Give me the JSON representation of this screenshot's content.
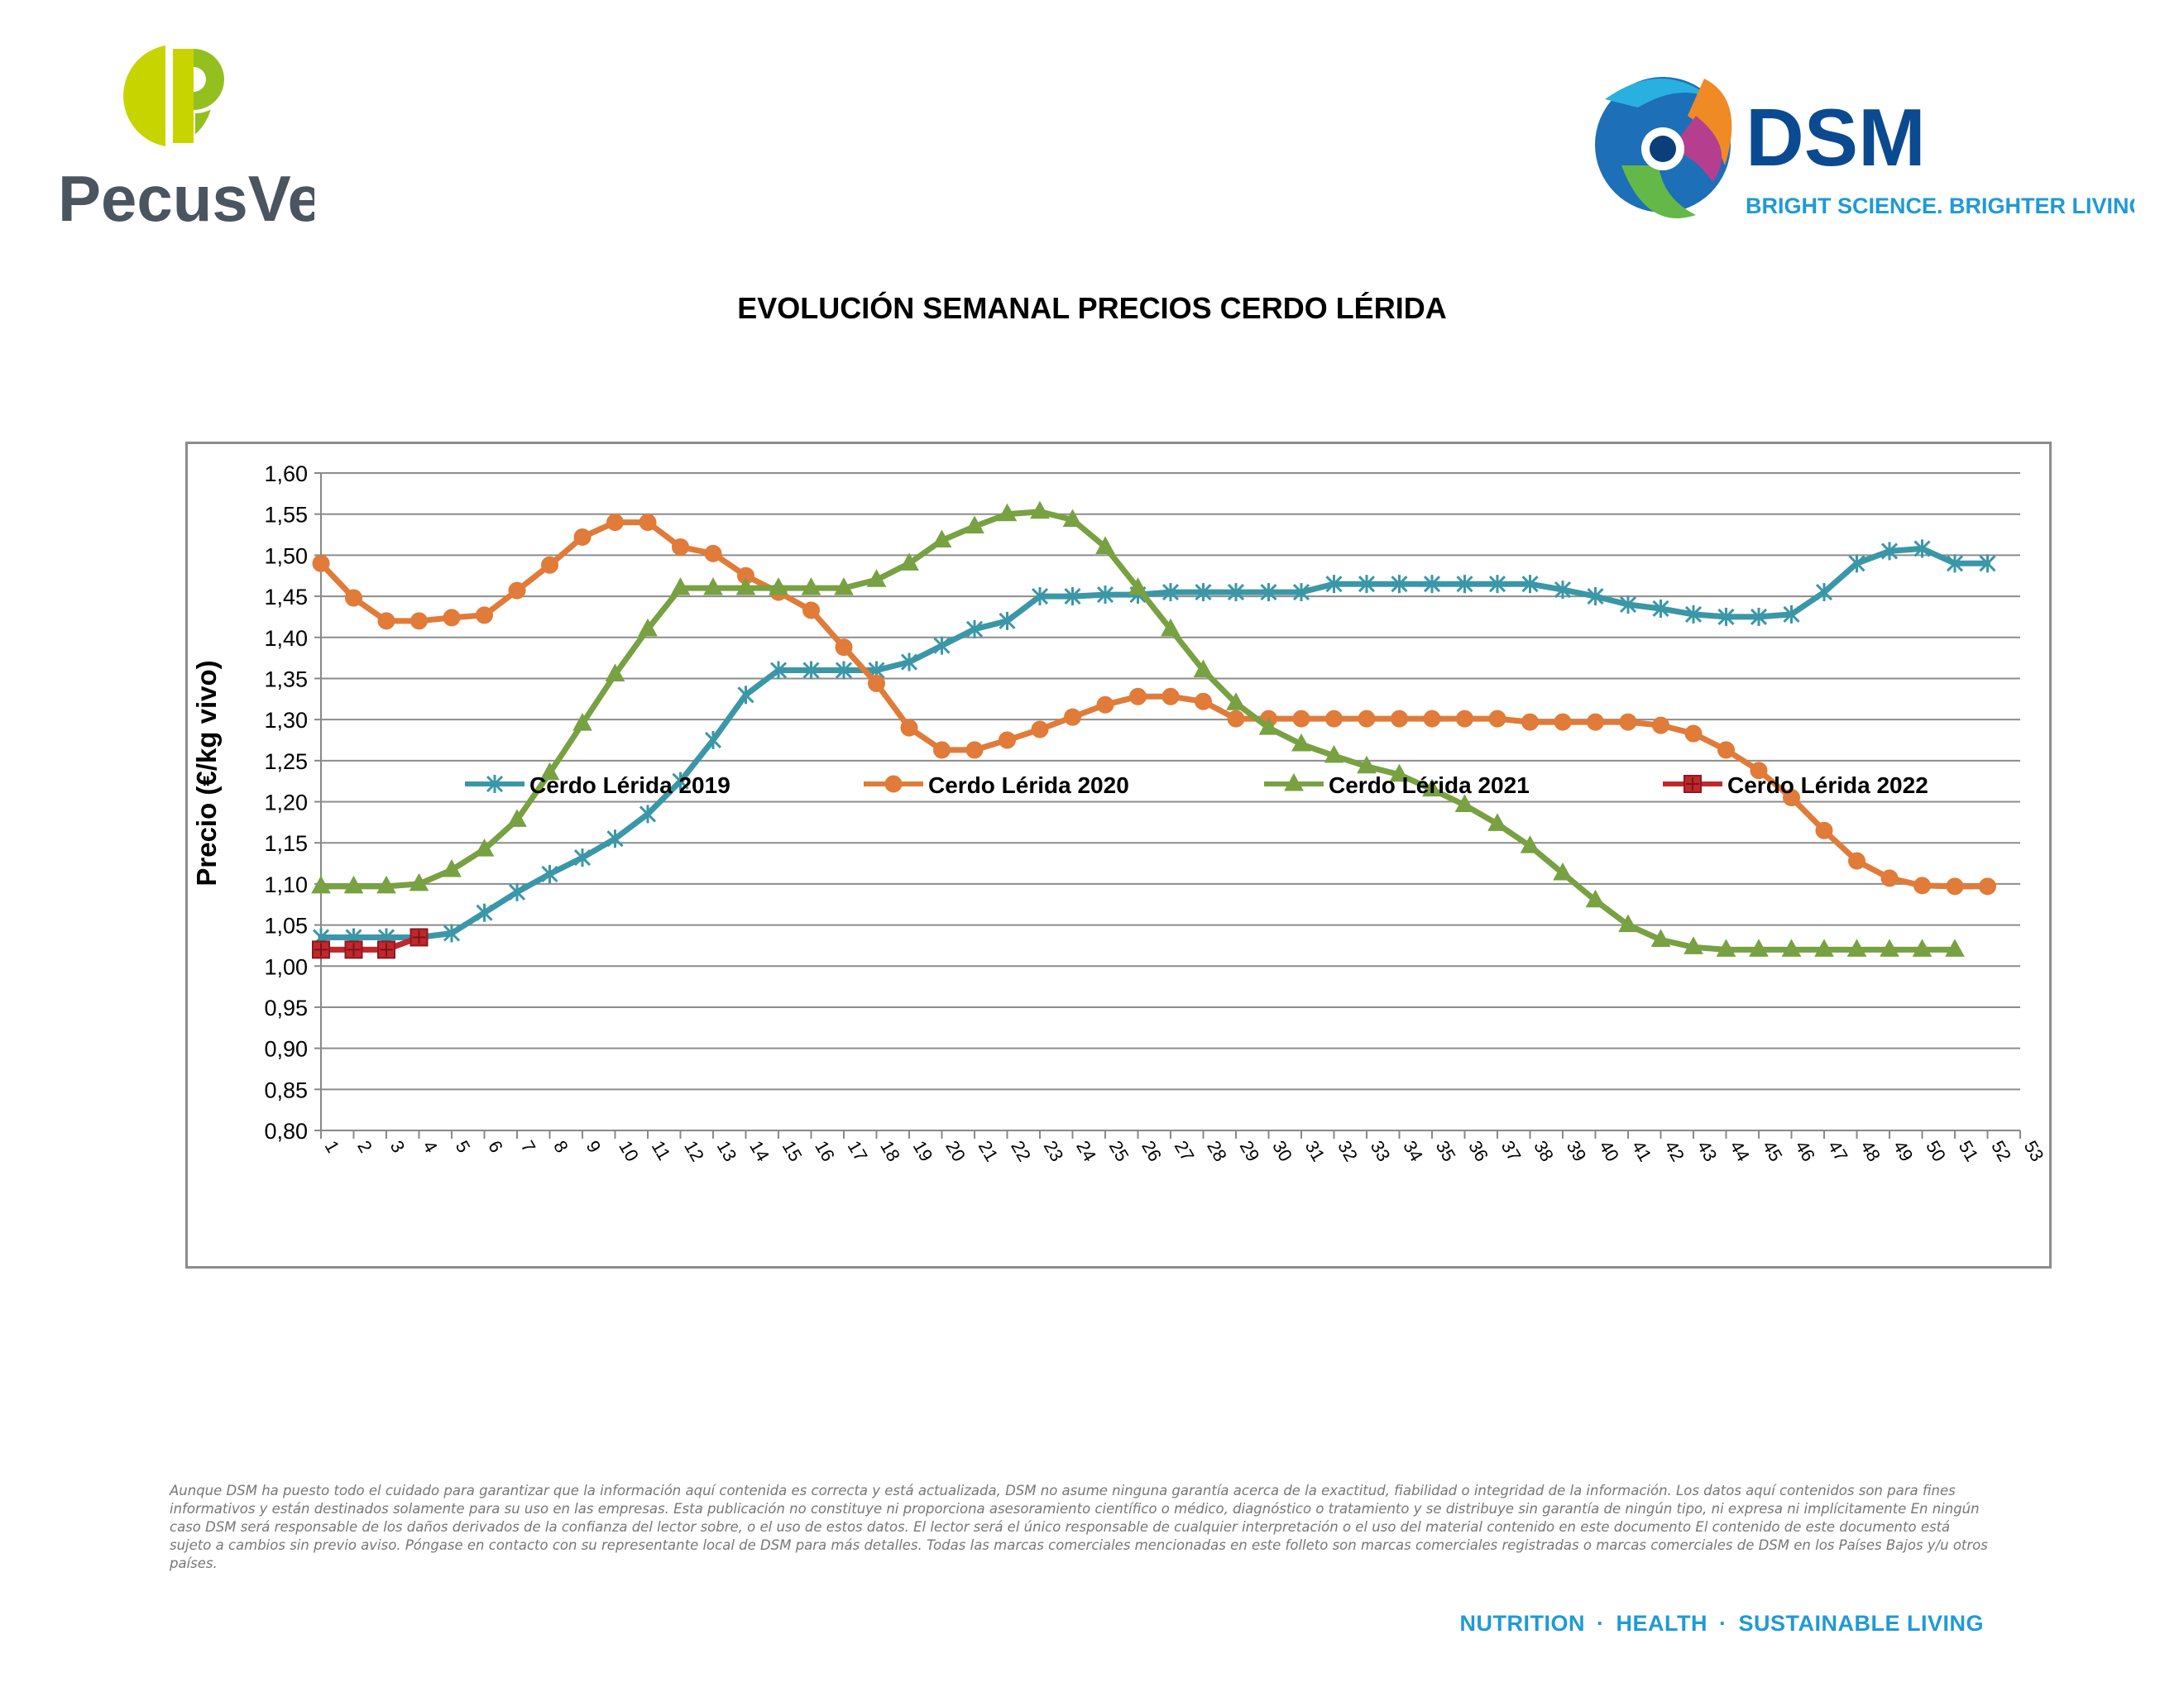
{
  "header": {
    "left_logo_text": "PecusVet",
    "right_logo_name": "DSM",
    "right_logo_slogan": "BRIGHT SCIENCE. BRIGHTER LIVING."
  },
  "chart_data": {
    "type": "line",
    "title": "EVOLUCIÓN SEMANAL PRECIOS CERDO LÉRIDA",
    "xlabel": "",
    "ylabel": "Precio (€/kg vivo)",
    "ylim": [
      0.8,
      1.6
    ],
    "ytick_step": 0.05,
    "x_categories": [
      1,
      2,
      3,
      4,
      5,
      6,
      7,
      8,
      9,
      10,
      11,
      12,
      13,
      14,
      15,
      16,
      17,
      18,
      19,
      20,
      21,
      22,
      23,
      24,
      25,
      26,
      27,
      28,
      29,
      30,
      31,
      32,
      33,
      34,
      35,
      36,
      37,
      38,
      39,
      40,
      41,
      42,
      43,
      44,
      45,
      46,
      47,
      48,
      49,
      50,
      51,
      52,
      53
    ],
    "grid": true,
    "legend_position": "bottom",
    "series": [
      {
        "name": "Cerdo Lérida 2019",
        "color": "#3a97a8",
        "marker": "star",
        "values": [
          1.035,
          1.035,
          1.035,
          1.035,
          1.04,
          1.065,
          1.09,
          1.112,
          1.132,
          1.155,
          1.185,
          1.225,
          1.275,
          1.33,
          1.36,
          1.36,
          1.36,
          1.36,
          1.37,
          1.39,
          1.41,
          1.42,
          1.45,
          1.45,
          1.452,
          1.452,
          1.455,
          1.455,
          1.455,
          1.455,
          1.455,
          1.465,
          1.465,
          1.465,
          1.465,
          1.465,
          1.465,
          1.465,
          1.458,
          1.45,
          1.44,
          1.435,
          1.428,
          1.425,
          1.425,
          1.428,
          1.455,
          1.49,
          1.505,
          1.508,
          1.49,
          1.49
        ]
      },
      {
        "name": "Cerdo Lérida 2020",
        "color": "#e07b39",
        "marker": "circle",
        "values": [
          1.49,
          1.448,
          1.42,
          1.42,
          1.424,
          1.427,
          1.457,
          1.488,
          1.522,
          1.54,
          1.54,
          1.51,
          1.502,
          1.475,
          1.455,
          1.433,
          1.388,
          1.344,
          1.29,
          1.263,
          1.263,
          1.275,
          1.288,
          1.303,
          1.318,
          1.328,
          1.328,
          1.322,
          1.301,
          1.301,
          1.301,
          1.301,
          1.301,
          1.301,
          1.301,
          1.301,
          1.301,
          1.297,
          1.297,
          1.297,
          1.297,
          1.293,
          1.283,
          1.263,
          1.238,
          1.205,
          1.165,
          1.128,
          1.107,
          1.098,
          1.097,
          1.097
        ]
      },
      {
        "name": "Cerdo Lérida 2021",
        "color": "#78a142",
        "marker": "triangle",
        "values": [
          1.097,
          1.097,
          1.097,
          1.1,
          1.117,
          1.142,
          1.178,
          1.235,
          1.295,
          1.355,
          1.41,
          1.46,
          1.46,
          1.46,
          1.46,
          1.46,
          1.46,
          1.47,
          1.49,
          1.518,
          1.535,
          1.55,
          1.553,
          1.543,
          1.51,
          1.46,
          1.41,
          1.36,
          1.32,
          1.29,
          1.27,
          1.256,
          1.243,
          1.233,
          1.215,
          1.196,
          1.173,
          1.146,
          1.113,
          1.08,
          1.05,
          1.032,
          1.023,
          1.02,
          1.02,
          1.02,
          1.02,
          1.02,
          1.02,
          1.02,
          1.02
        ]
      },
      {
        "name": "Cerdo Lérida 2022",
        "color": "#c0282d",
        "marker": "square-plus",
        "values": [
          1.02,
          1.02,
          1.02,
          1.035
        ]
      }
    ]
  },
  "yticks": [
    "0,80",
    "0,85",
    "0,90",
    "0,95",
    "1,00",
    "1,05",
    "1,10",
    "1,15",
    "1,20",
    "1,25",
    "1,30",
    "1,35",
    "1,40",
    "1,45",
    "1,50",
    "1,55",
    "1,60"
  ],
  "disclaimer": "Aunque DSM ha puesto todo el cuidado para garantizar que la información aquí contenida es correcta y está actualizada, DSM no asume ninguna garantía acerca de la exactitud, fiabilidad o integridad de la información. Los datos aquí contenidos son para fines informativos y están destinados solamente para su uso en las empresas. Esta publicación no constituye ni proporciona asesoramiento científico o médico, diagnóstico o tratamiento y se distribuye sin garantía de ningún tipo, ni expresa ni implícitamente En ningún caso DSM será responsable de los daños derivados de la confianza del lector sobre, o el uso de estos datos. El lector será el único responsable de cualquier interpretación o el uso del material contenido en este documento El contenido de este documento está sujeto a cambios sin previo aviso. Póngase en contacto con su representante local de DSM para más detalles. Todas las marcas comerciales mencionadas en este folleto son marcas comerciales registradas o marcas comerciales de DSM en los Países Bajos y/u otros países.",
  "footer": {
    "tagline_parts": [
      "NUTRITION",
      "HEALTH",
      "SUSTAINABLE LIVING"
    ],
    "separator": "·"
  }
}
